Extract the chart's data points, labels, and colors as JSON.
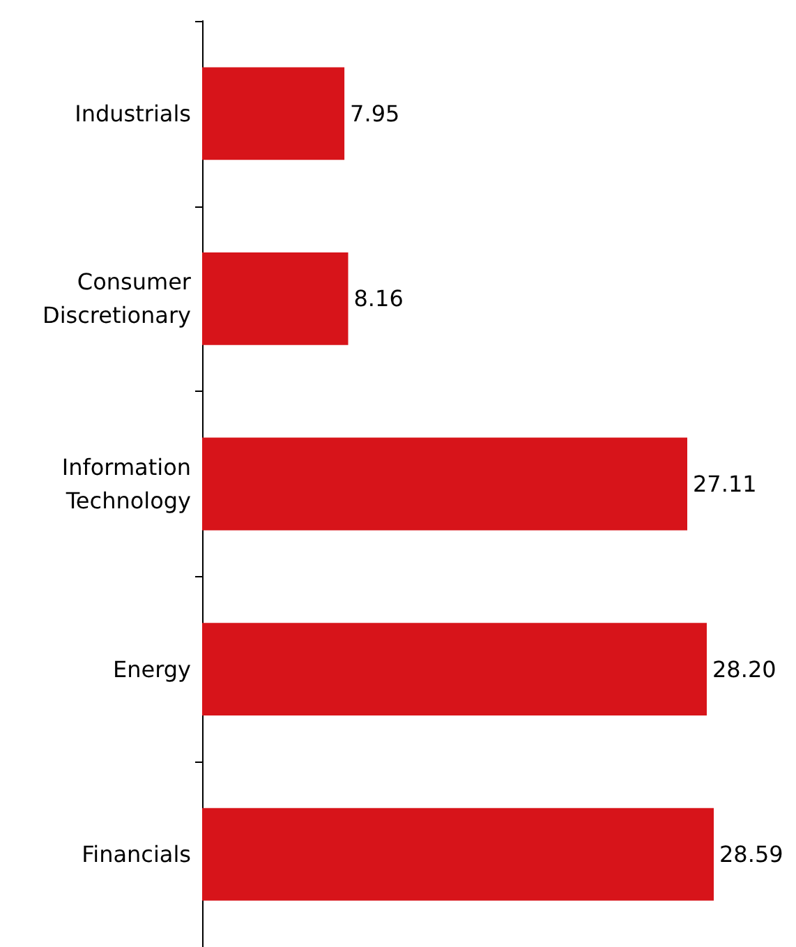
{
  "chart_data": {
    "type": "bar",
    "orientation": "horizontal",
    "categories": [
      "Industrials",
      "Consumer\nDiscretionary",
      "Information\nTechnology",
      "Energy",
      "Financials"
    ],
    "values": [
      7.95,
      8.16,
      27.11,
      28.2,
      28.59
    ],
    "value_labels": [
      "7.95",
      "8.16",
      "27.11",
      "28.20",
      "28.59"
    ],
    "color": "#d7141a",
    "tick_labels": "y"
  }
}
